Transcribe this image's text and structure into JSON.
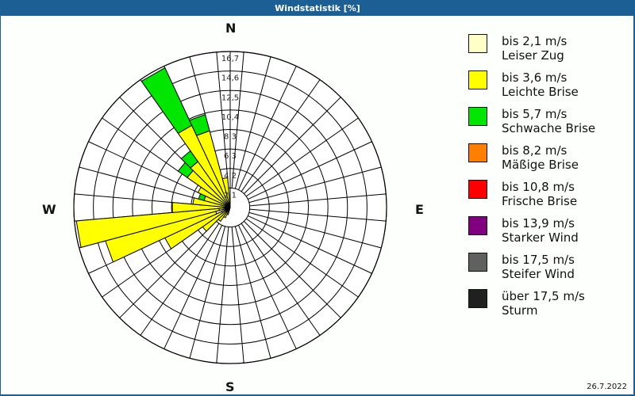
{
  "title": "Windstatistik [%]",
  "date": "26.7.2022",
  "compass": {
    "n": "N",
    "e": "E",
    "s": "S",
    "w": "W"
  },
  "legend": [
    {
      "range": "bis 2,1 m/s",
      "name": "Leiser Zug",
      "color": "#ffffc8"
    },
    {
      "range": "bis 3,6 m/s",
      "name": "Leichte Brise",
      "color": "#ffff00"
    },
    {
      "range": "bis 5,7 m/s",
      "name": "Schwache Brise",
      "color": "#00e600"
    },
    {
      "range": "bis 8,2 m/s",
      "name": "Mäßige Brise",
      "color": "#ff8000"
    },
    {
      "range": "bis 10,8 m/s",
      "name": "Frische Brise",
      "color": "#ff0000"
    },
    {
      "range": "bis 13,9 m/s",
      "name": "Starker Wind",
      "color": "#800080"
    },
    {
      "range": "bis 17,5 m/s",
      "name": "Steifer Wind",
      "color": "#606060"
    },
    {
      "range": "über 17,5 m/s",
      "name": "Sturm",
      "color": "#202020"
    }
  ],
  "chart_data": {
    "type": "polar-stacked-bar",
    "title": "Windstatistik [%]",
    "ring_labels": [
      "2,1",
      "4,2",
      "6,3",
      "8,3",
      "10,4",
      "12,5",
      "14,6",
      "16,7"
    ],
    "rmax": 16.7,
    "sector_width_deg": 10,
    "series_names": [
      "Leiser Zug",
      "Leichte Brise",
      "Schwache Brise"
    ],
    "sectors": [
      {
        "dir": 220,
        "values": [
          0.3,
          1.5,
          0
        ]
      },
      {
        "dir": 230,
        "values": [
          0.6,
          3.0,
          0
        ]
      },
      {
        "dir": 240,
        "values": [
          1.0,
          6.7,
          0
        ]
      },
      {
        "dir": 250,
        "values": [
          1.6,
          12.2,
          0
        ]
      },
      {
        "dir": 260,
        "values": [
          1.2,
          15.3,
          0
        ]
      },
      {
        "dir": 270,
        "values": [
          0.6,
          5.6,
          0
        ]
      },
      {
        "dir": 280,
        "values": [
          0.4,
          3.6,
          0
        ]
      },
      {
        "dir": 290,
        "values": [
          0.3,
          2.6,
          0.6
        ]
      },
      {
        "dir": 300,
        "values": [
          0.3,
          3.5,
          0
        ]
      },
      {
        "dir": 310,
        "values": [
          0.3,
          5.3,
          1.2
        ]
      },
      {
        "dir": 320,
        "values": [
          0.3,
          5.7,
          1.4
        ]
      },
      {
        "dir": 330,
        "values": [
          0.3,
          9.4,
          6.8
        ]
      },
      {
        "dir": 340,
        "values": [
          0.3,
          8.2,
          1.8
        ]
      },
      {
        "dir": 350,
        "values": [
          0.3,
          2.9,
          0
        ]
      },
      {
        "dir": 200,
        "values": [
          0.2,
          0.6,
          0
        ]
      },
      {
        "dir": 210,
        "values": [
          0.3,
          0.9,
          0
        ]
      }
    ]
  }
}
